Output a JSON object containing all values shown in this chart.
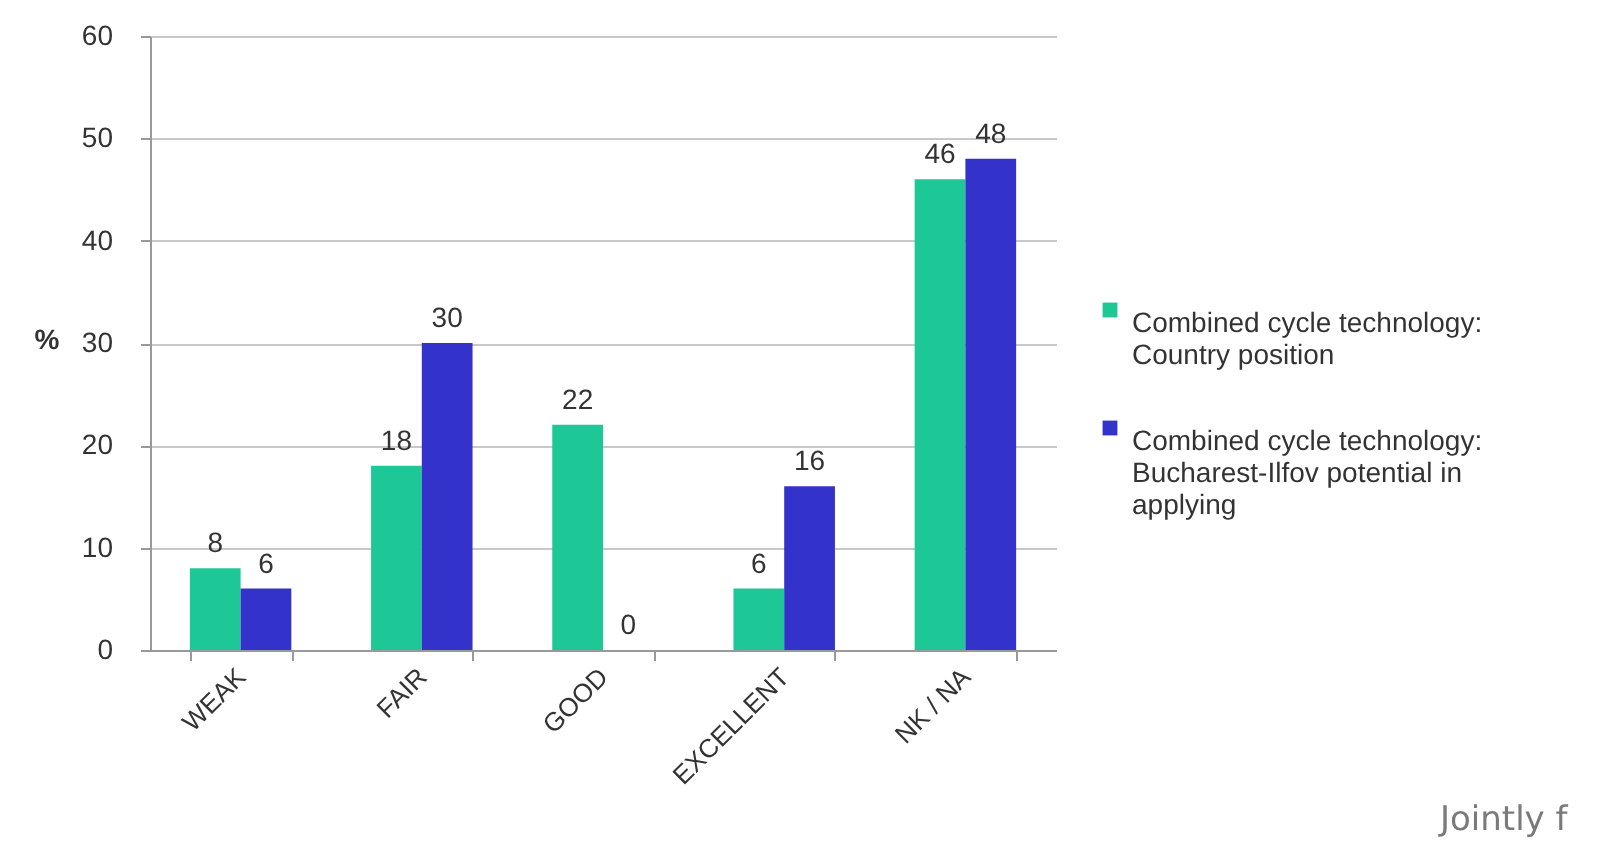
{
  "chart_data": {
    "type": "bar",
    "ylabel": "%",
    "categories": [
      "WEAK",
      "FAIR",
      "GOOD",
      "EXCELLENT",
      "NK / NA"
    ],
    "series": [
      {
        "name": "Combined cycle technology: Country position",
        "color": "#1ec896",
        "values": [
          8,
          18,
          22,
          6,
          46
        ]
      },
      {
        "name": "Combined cycle technology: Bucharest-Ilfov potential in applying",
        "color": "#3333cc",
        "values": [
          6,
          30,
          0,
          16,
          48
        ]
      }
    ],
    "ylim": [
      0,
      60
    ],
    "yticks": [
      0,
      10,
      20,
      30,
      40,
      50,
      60
    ],
    "grid": "y",
    "legend": "right",
    "data_labels": true,
    "annotations": [
      "Jointly f"
    ]
  }
}
